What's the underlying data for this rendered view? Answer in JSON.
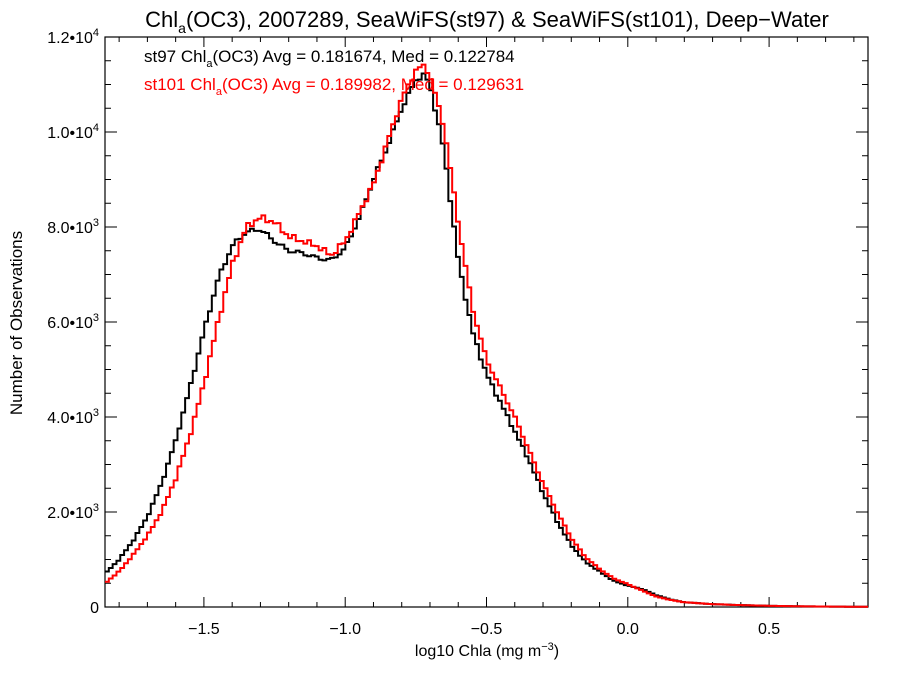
{
  "chart_data": {
    "type": "line",
    "title_parts": {
      "base": "Chl",
      "sub": "a",
      "rest": "(OC3), 2007289, SeaWiFS(st97) & SeaWiFS(st101), Deep−Water"
    },
    "xlabel_parts": {
      "base": "log10 Chla (mg m",
      "sup": "−3",
      "close": ")"
    },
    "ylabel": "Number of Observations",
    "xlim": [
      -1.85,
      0.85
    ],
    "ylim": [
      0,
      12000
    ],
    "x_ticks": [
      {
        "value": -1.5,
        "label": "−1.5"
      },
      {
        "value": -1.0,
        "label": "−1.0"
      },
      {
        "value": -0.5,
        "label": "−0.5"
      },
      {
        "value": 0.0,
        "label": "0.0"
      },
      {
        "value": 0.5,
        "label": "0.5"
      }
    ],
    "y_ticks": [
      {
        "value": 0,
        "mant": "0",
        "exp": ""
      },
      {
        "value": 2000,
        "mant": "2.0•10",
        "exp": "3"
      },
      {
        "value": 4000,
        "mant": "4.0•10",
        "exp": "3"
      },
      {
        "value": 6000,
        "mant": "6.0•10",
        "exp": "3"
      },
      {
        "value": 8000,
        "mant": "8.0•10",
        "exp": "3"
      },
      {
        "value": 10000,
        "mant": "1.0•10",
        "exp": "4"
      },
      {
        "value": 12000,
        "mant": "1.2•10",
        "exp": "4"
      }
    ],
    "annotations": [
      {
        "series": "st97",
        "color": "#000000",
        "pre": "st97 Chl",
        "sub": "a",
        "post": "(OC3) Avg = 0.181674, Med = 0.122784"
      },
      {
        "series": "st101",
        "color": "#ff0000",
        "pre": "st101 Chl",
        "sub": "a",
        "post": "(OC3) Avg = 0.189982, Med = 0.129631"
      }
    ],
    "series": [
      {
        "name": "st97",
        "color": "#000000",
        "x": [
          -1.85,
          -1.8,
          -1.75,
          -1.7,
          -1.65,
          -1.6,
          -1.55,
          -1.5,
          -1.45,
          -1.4,
          -1.35,
          -1.3,
          -1.25,
          -1.2,
          -1.15,
          -1.1,
          -1.05,
          -1.0,
          -0.95,
          -0.9,
          -0.85,
          -0.8,
          -0.75,
          -0.72,
          -0.7,
          -0.65,
          -0.6,
          -0.55,
          -0.5,
          -0.45,
          -0.4,
          -0.35,
          -0.3,
          -0.25,
          -0.2,
          -0.15,
          -0.1,
          -0.05,
          0.0,
          0.05,
          0.1,
          0.15,
          0.2,
          0.3,
          0.4,
          0.5,
          0.6,
          0.7,
          0.8,
          0.85
        ],
        "y": [
          700,
          1000,
          1400,
          1900,
          2600,
          3500,
          4600,
          5800,
          6900,
          7600,
          7900,
          7950,
          7700,
          7500,
          7450,
          7350,
          7300,
          7550,
          8200,
          9000,
          9700,
          10500,
          11100,
          11200,
          11000,
          9600,
          7300,
          5800,
          4900,
          4300,
          3700,
          3100,
          2400,
          1800,
          1300,
          950,
          750,
          550,
          450,
          380,
          250,
          160,
          100,
          60,
          40,
          25,
          15,
          10,
          5,
          5
        ]
      },
      {
        "name": "st101",
        "color": "#ff0000",
        "x": [
          -1.85,
          -1.8,
          -1.75,
          -1.7,
          -1.65,
          -1.6,
          -1.55,
          -1.5,
          -1.45,
          -1.4,
          -1.35,
          -1.3,
          -1.25,
          -1.2,
          -1.15,
          -1.1,
          -1.05,
          -1.0,
          -0.95,
          -0.9,
          -0.85,
          -0.8,
          -0.75,
          -0.72,
          -0.7,
          -0.65,
          -0.6,
          -0.55,
          -0.5,
          -0.45,
          -0.4,
          -0.35,
          -0.3,
          -0.25,
          -0.2,
          -0.15,
          -0.1,
          -0.05,
          0.0,
          0.05,
          0.1,
          0.15,
          0.2,
          0.3,
          0.4,
          0.5,
          0.6,
          0.7,
          0.8,
          0.85
        ],
        "y": [
          500,
          750,
          1100,
          1500,
          2000,
          2700,
          3600,
          4700,
          6000,
          7200,
          8000,
          8200,
          8100,
          7800,
          7700,
          7600,
          7400,
          7700,
          8300,
          8900,
          9800,
          10700,
          11300,
          11400,
          11200,
          10100,
          8100,
          6300,
          5200,
          4600,
          4000,
          3300,
          2600,
          2000,
          1450,
          1050,
          800,
          600,
          480,
          350,
          220,
          150,
          100,
          60,
          40,
          25,
          15,
          10,
          5,
          5
        ]
      }
    ]
  }
}
